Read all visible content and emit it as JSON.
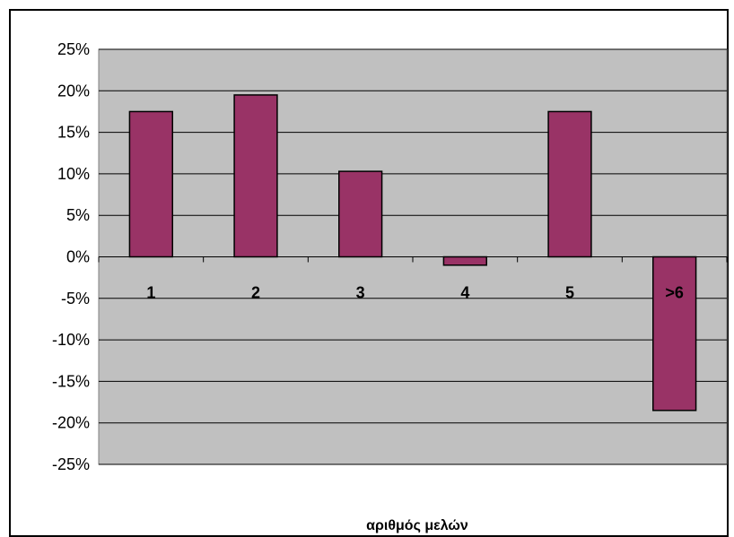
{
  "chart_data": {
    "type": "bar",
    "title": "",
    "xlabel": "αριθμός μελών",
    "ylabel": "",
    "categories": [
      "1",
      "2",
      "3",
      "4",
      "5",
      ">6"
    ],
    "values": [
      0.175,
      0.195,
      0.103,
      -0.01,
      0.175,
      -0.185
    ],
    "ylim": [
      -0.25,
      0.25
    ],
    "yticks": [
      0.25,
      0.2,
      0.15,
      0.1,
      0.05,
      0.0,
      -0.05,
      -0.1,
      -0.15,
      -0.2,
      -0.25
    ],
    "ytick_labels": [
      "25%",
      "20%",
      "15%",
      "10%",
      "5%",
      "0%",
      "-5%",
      "-10%",
      "-15%",
      "-20%",
      "-25%"
    ],
    "grid": true,
    "legend": "none",
    "colors": {
      "bar_fill": "#993366",
      "bar_stroke": "#000000",
      "plot_background": "#c0c0c0",
      "gridline": "#000000",
      "frame": "#000000"
    }
  }
}
